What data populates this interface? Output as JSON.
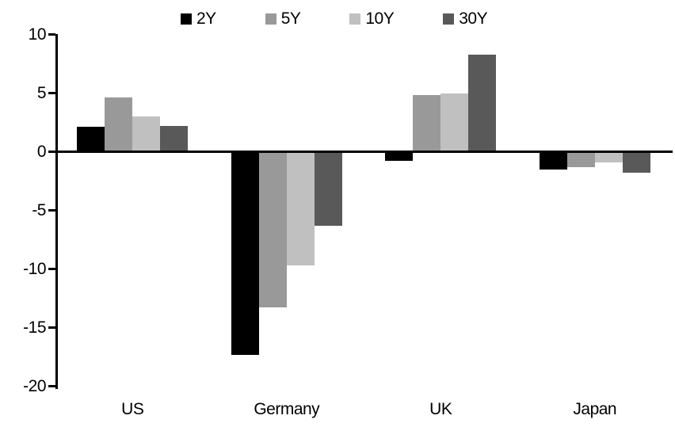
{
  "chart_data": {
    "type": "bar",
    "title": "",
    "xlabel": "",
    "ylabel": "",
    "categories": [
      "US",
      "Germany",
      "UK",
      "Japan"
    ],
    "series": [
      {
        "name": "2Y",
        "color": "#000000",
        "values": [
          2.1,
          -17.3,
          -0.8,
          -1.5
        ]
      },
      {
        "name": "5Y",
        "color": "#999999",
        "values": [
          4.6,
          -13.3,
          4.8,
          -1.3
        ]
      },
      {
        "name": "10Y",
        "color": "#c0c0c0",
        "values": [
          3.0,
          -9.7,
          5.0,
          -0.9
        ]
      },
      {
        "name": "30Y",
        "color": "#595959",
        "values": [
          2.2,
          -6.3,
          8.3,
          -1.8
        ]
      }
    ],
    "ylim": [
      -20,
      10
    ],
    "yticks": [
      10,
      5,
      0,
      -5,
      -10,
      -15,
      -20
    ],
    "grid": false,
    "legend_position": "top"
  }
}
